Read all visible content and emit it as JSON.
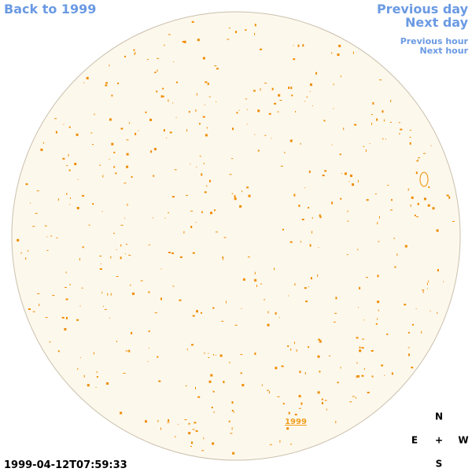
{
  "nav": {
    "back": "Back to 1999",
    "previous_day": "Previous day",
    "next_day": "Next day",
    "previous_hour": "Previous hour",
    "next_hour": "Next hour"
  },
  "timestamp": "1999-04-12T07:59:33",
  "disk_label": "1999",
  "compass": {
    "north": "N",
    "south": "S",
    "east": "E",
    "west": "W",
    "center": "+"
  }
}
